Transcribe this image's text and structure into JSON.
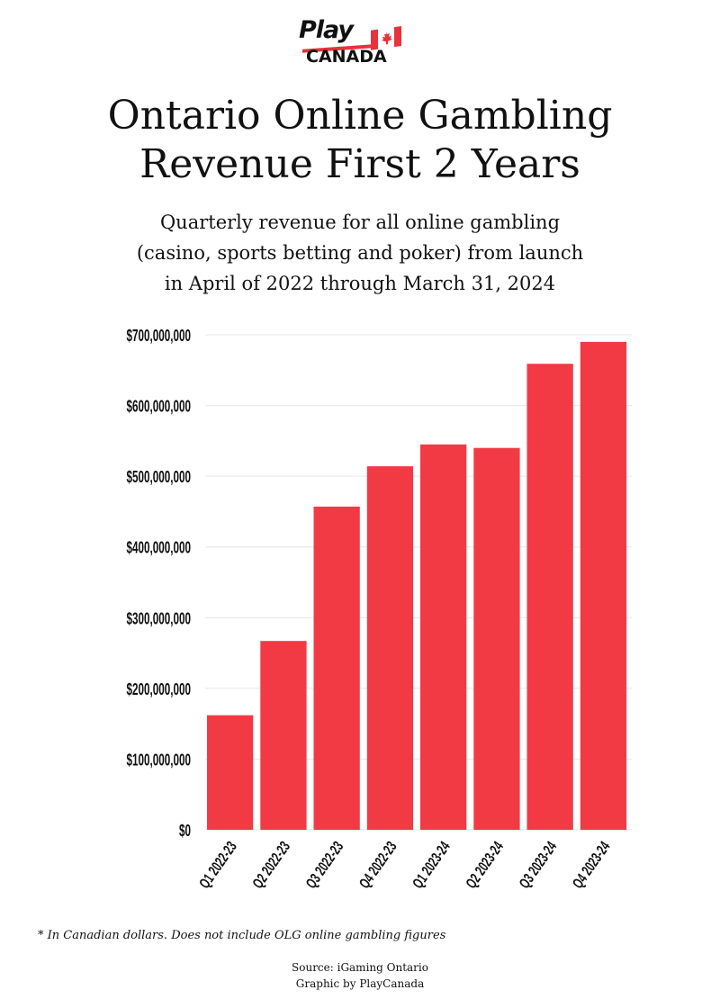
{
  "logo": {
    "play": "Play",
    "canada": "CANADA",
    "flag_icon": "maple-leaf-flag-icon"
  },
  "title": {
    "line1": "Ontario Online Gambling",
    "line2": "Revenue First 2 Years"
  },
  "subtitle": {
    "line1": "Quarterly revenue for all online gambling",
    "line2": "(casino, sports betting and poker) from launch",
    "line3": "in April of 2022 through March 31, 2024"
  },
  "chart_data": {
    "type": "bar",
    "categories": [
      "Q1 2022-23",
      "Q2 2022-23",
      "Q3 2022-23",
      "Q4 2022-23",
      "Q1 2023-24",
      "Q2 2023-24",
      "Q3 2023-24",
      "Q4 2023-24"
    ],
    "values": [
      162000000,
      267000000,
      457000000,
      514000000,
      545000000,
      540000000,
      659000000,
      690000000
    ],
    "ylim": [
      0,
      700000000
    ],
    "y_ticks": [
      0,
      100000000,
      200000000,
      300000000,
      400000000,
      500000000,
      600000000,
      700000000
    ],
    "y_tick_labels": [
      "$0",
      "$100,000,000",
      "$200,000,000",
      "$300,000,000",
      "$400,000,000",
      "$500,000,000",
      "$600,000,000",
      "$700,000,000"
    ],
    "bar_color": "#f23a45",
    "grid": true,
    "xlabel": "",
    "ylabel": ""
  },
  "footnote": "* In Canadian dollars. Does not include OLG online gambling figures",
  "source": {
    "line1": "Source: iGaming Ontario",
    "line2": "Graphic by PlayCanada"
  },
  "colors": {
    "accent": "#e8323c",
    "text": "#111111"
  }
}
